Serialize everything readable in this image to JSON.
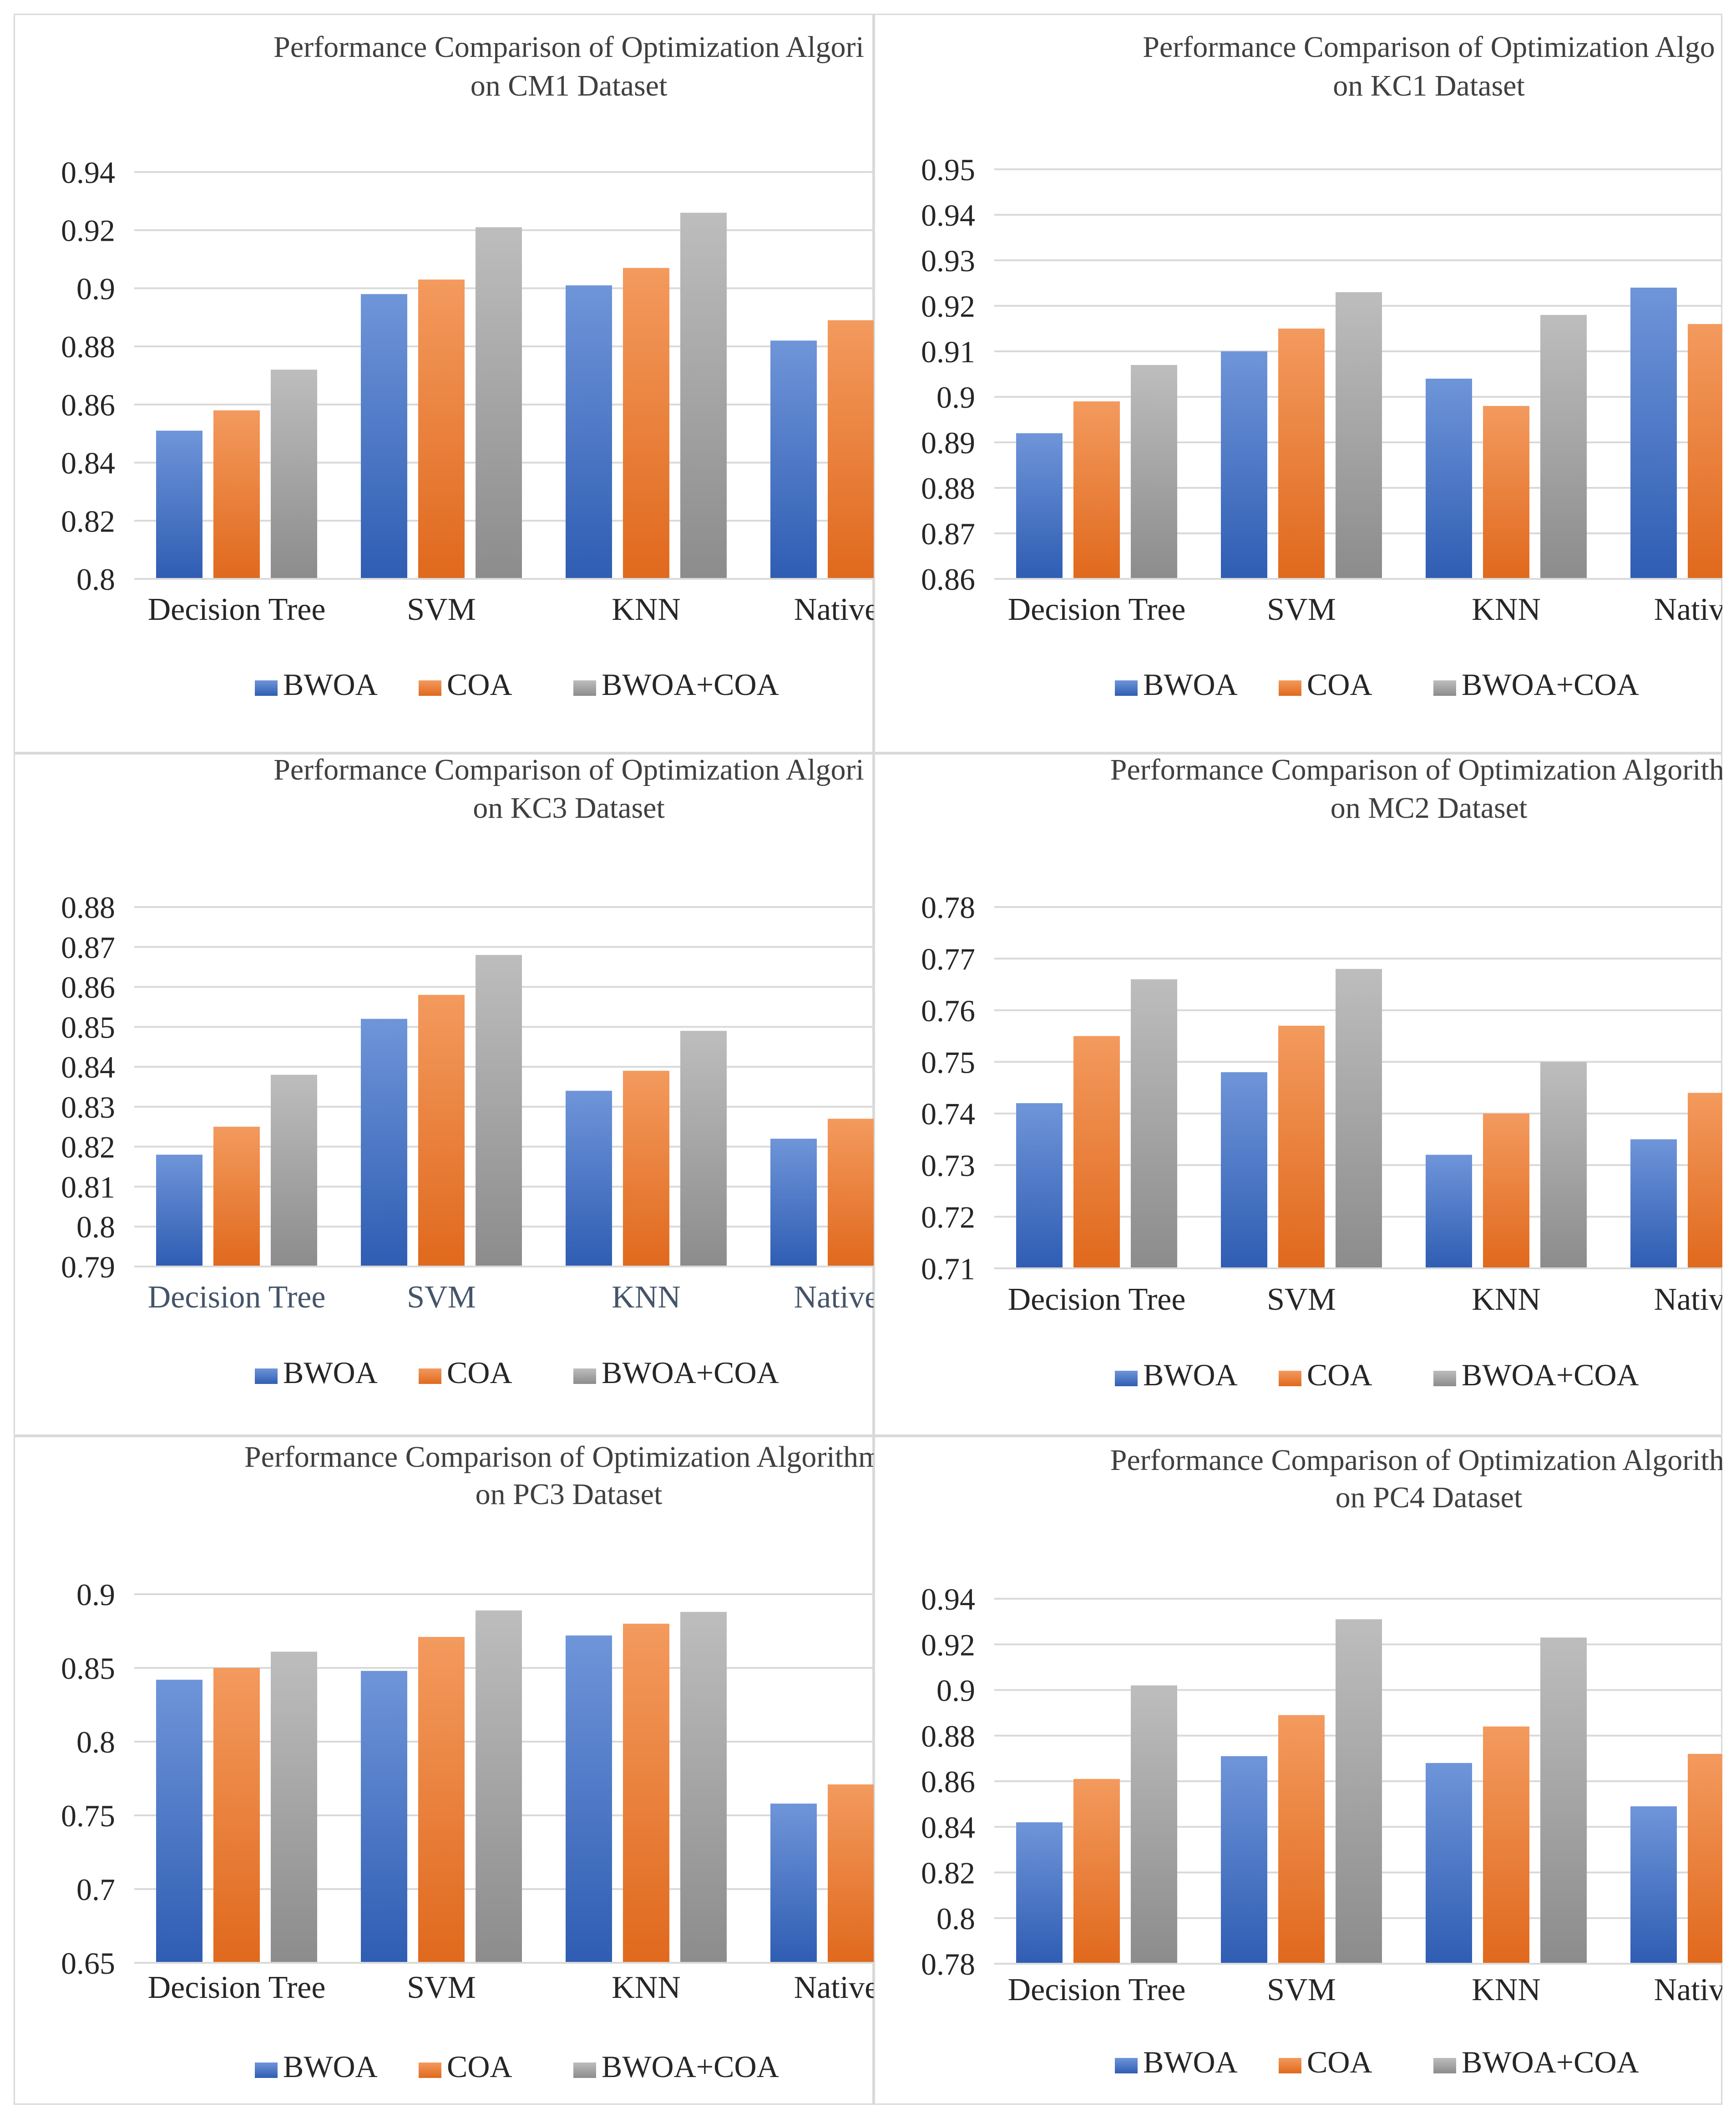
{
  "legend_labels": [
    "BWOA",
    "COA",
    "BWOA+COA"
  ],
  "colors": {
    "bwoa": "#4472C4",
    "coa": "#ED7D31",
    "combo": "#A5A5A5"
  },
  "chart_data": [
    {
      "type": "bar",
      "title_lines": [
        "Performance Comparison of Optimization Algori",
        "on CM1 Dataset"
      ],
      "categories": [
        "Decision Tree",
        "SVM",
        "KNN",
        "Native B"
      ],
      "yticks": [
        "0.8",
        "0.82",
        "0.84",
        "0.86",
        "0.88",
        "0.9",
        "0.92",
        "0.94"
      ],
      "ylim": [
        0.8,
        0.94
      ],
      "grid": true,
      "legend": "bottom",
      "series": [
        {
          "name": "BWOA",
          "values": [
            0.851,
            0.898,
            0.901,
            0.882
          ]
        },
        {
          "name": "COA",
          "values": [
            0.858,
            0.903,
            0.907,
            0.889
          ]
        },
        {
          "name": "BWOA+COA",
          "values": [
            0.872,
            0.921,
            0.926,
            null
          ]
        }
      ]
    },
    {
      "type": "bar",
      "title_lines": [
        "Performance Comparison of Optimization Algo",
        "on KC1 Dataset"
      ],
      "categories": [
        "Decision Tree",
        "SVM",
        "KNN",
        "Native B"
      ],
      "yticks": [
        "0.86",
        "0.87",
        "0.88",
        "0.89",
        "0.9",
        "0.91",
        "0.92",
        "0.93",
        "0.94",
        "0.95"
      ],
      "ylim": [
        0.86,
        0.95
      ],
      "grid": true,
      "legend": "bottom",
      "series": [
        {
          "name": "BWOA",
          "values": [
            0.892,
            0.91,
            0.904,
            0.924
          ]
        },
        {
          "name": "COA",
          "values": [
            0.899,
            0.915,
            0.898,
            0.916
          ]
        },
        {
          "name": "BWOA+COA",
          "values": [
            0.907,
            0.923,
            0.918,
            null
          ]
        }
      ]
    },
    {
      "type": "bar",
      "title_lines": [
        "Performance Comparison of Optimization Algori",
        "on KC3 Dataset"
      ],
      "categories": [
        "Decision Tree",
        "SVM",
        "KNN",
        "Native B"
      ],
      "yticks": [
        "0.79",
        "0.8",
        "0.81",
        "0.82",
        "0.83",
        "0.84",
        "0.85",
        "0.86",
        "0.87",
        "0.88"
      ],
      "ylim": [
        0.79,
        0.88
      ],
      "grid": true,
      "legend": "bottom",
      "series": [
        {
          "name": "BWOA",
          "values": [
            0.818,
            0.852,
            0.834,
            0.822
          ]
        },
        {
          "name": "COA",
          "values": [
            0.825,
            0.858,
            0.839,
            0.827
          ]
        },
        {
          "name": "BWOA+COA",
          "values": [
            0.838,
            0.868,
            0.849,
            null
          ]
        }
      ]
    },
    {
      "type": "bar",
      "title_lines": [
        "Performance Comparison of Optimization Algorithm",
        "on MC2 Dataset"
      ],
      "categories": [
        "Decision Tree",
        "SVM",
        "KNN",
        "Native B"
      ],
      "yticks": [
        "0.71",
        "0.72",
        "0.73",
        "0.74",
        "0.75",
        "0.76",
        "0.77",
        "0.78"
      ],
      "ylim": [
        0.71,
        0.78
      ],
      "grid": true,
      "legend": "bottom",
      "series": [
        {
          "name": "BWOA",
          "values": [
            0.742,
            0.748,
            0.732,
            0.735
          ]
        },
        {
          "name": "COA",
          "values": [
            0.755,
            0.757,
            0.74,
            0.744
          ]
        },
        {
          "name": "BWOA+COA",
          "values": [
            0.766,
            0.768,
            0.75,
            null
          ]
        }
      ]
    },
    {
      "type": "bar",
      "title_lines": [
        "Performance Comparison of Optimization Algorithms",
        "on PC3 Dataset"
      ],
      "categories": [
        "Decision Tree",
        "SVM",
        "KNN",
        "Native B"
      ],
      "yticks": [
        "0.65",
        "0.7",
        "0.75",
        "0.8",
        "0.85",
        "0.9"
      ],
      "ylim": [
        0.65,
        0.9
      ],
      "grid": true,
      "legend": "bottom",
      "series": [
        {
          "name": "BWOA",
          "values": [
            0.842,
            0.848,
            0.872,
            0.758
          ]
        },
        {
          "name": "COA",
          "values": [
            0.85,
            0.871,
            0.88,
            0.771
          ]
        },
        {
          "name": "BWOA+COA",
          "values": [
            0.861,
            0.889,
            0.888,
            null
          ]
        }
      ]
    },
    {
      "type": "bar",
      "title_lines": [
        "Performance Comparison of Optimization Algorithm",
        "on PC4 Dataset"
      ],
      "categories": [
        "Decision Tree",
        "SVM",
        "KNN",
        "Native B"
      ],
      "yticks": [
        "0.78",
        "0.8",
        "0.82",
        "0.84",
        "0.86",
        "0.88",
        "0.9",
        "0.92",
        "0.94"
      ],
      "ylim": [
        0.78,
        0.94
      ],
      "grid": true,
      "legend": "bottom",
      "series": [
        {
          "name": "BWOA",
          "values": [
            0.842,
            0.871,
            0.868,
            0.849
          ]
        },
        {
          "name": "COA",
          "values": [
            0.861,
            0.889,
            0.884,
            0.872
          ]
        },
        {
          "name": "BWOA+COA",
          "values": [
            0.902,
            0.931,
            0.923,
            null
          ]
        }
      ]
    }
  ]
}
